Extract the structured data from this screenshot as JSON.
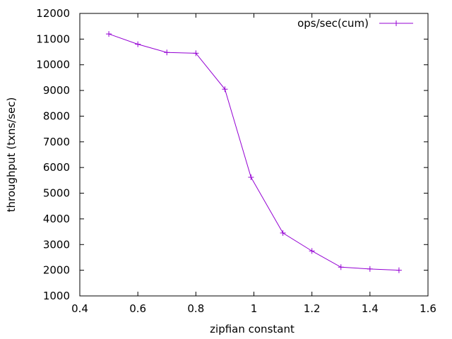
{
  "chart_data": {
    "type": "line",
    "title": "",
    "xlabel": "zipfian constant",
    "ylabel": "throughput (txns/sec)",
    "xlim": [
      0.4,
      1.6
    ],
    "ylim": [
      1000,
      12000
    ],
    "x_ticks": [
      "0.4",
      "0.6",
      "0.8",
      "1",
      "1.2",
      "1.4",
      "1.6"
    ],
    "y_ticks": [
      "1000",
      "2000",
      "3000",
      "4000",
      "5000",
      "6000",
      "7000",
      "8000",
      "9000",
      "10000",
      "11000",
      "12000"
    ],
    "grid": false,
    "legend_position": "top-right",
    "series": [
      {
        "name": "ops/sec(cum)",
        "color": "#9400d3",
        "marker": "plus",
        "x": [
          0.5,
          0.6,
          0.7,
          0.8,
          0.9,
          0.99,
          1.1,
          1.2,
          1.3,
          1.4,
          1.5
        ],
        "y": [
          11200,
          10800,
          10480,
          10450,
          9050,
          5620,
          3450,
          2750,
          2120,
          2050,
          2000
        ]
      }
    ]
  }
}
